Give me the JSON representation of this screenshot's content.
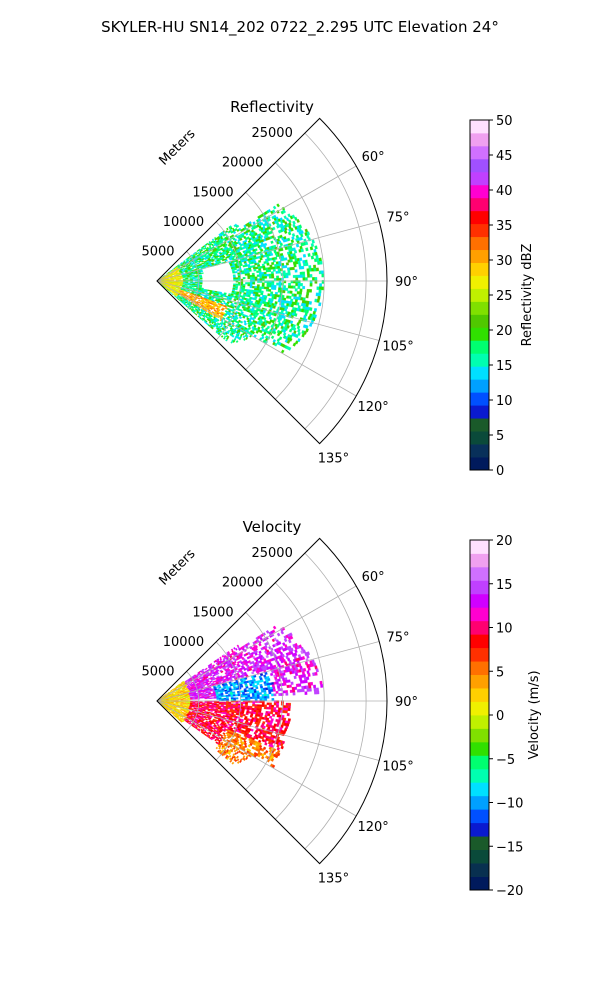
{
  "figure": {
    "title": "SKYLER-HU  SN14_202  0722_2.295 UTC Elevation 24°"
  },
  "chart_data": [
    {
      "type": "heatmap",
      "subtype": "polar-sector-ppi",
      "title": "Reflectivity",
      "radial_label": "Meters",
      "r_ticks": [
        5000,
        10000,
        15000,
        20000,
        25000
      ],
      "r_tick_labels": [
        "5000",
        "10000",
        "15000",
        "20000",
        "25000"
      ],
      "r_max": 27500,
      "theta_range_deg": [
        45,
        135
      ],
      "theta_ticks": [
        60,
        75,
        90,
        105,
        120,
        135
      ],
      "theta_tick_labels": [
        "60°",
        "75°",
        "90°",
        "105°",
        "120°",
        "135°"
      ],
      "grid": true,
      "colorbar": {
        "label": "Reflectivity dBZ",
        "min": 0,
        "max": 50,
        "ticks": [
          0,
          5,
          10,
          15,
          20,
          25,
          30,
          35,
          40,
          45,
          50
        ],
        "tick_labels": [
          "0",
          "5",
          "10",
          "15",
          "20",
          "25",
          "30",
          "35",
          "40",
          "45",
          "50"
        ],
        "stops": [
          "#001a5c",
          "#08305a",
          "#0a4a3a",
          "#1a5a2a",
          "#0a1ad0",
          "#0050ff",
          "#00a0ff",
          "#00e0ff",
          "#00ffb0",
          "#00ff70",
          "#30e000",
          "#50c800",
          "#80e000",
          "#c0f000",
          "#f0f000",
          "#ffd000",
          "#ffa000",
          "#ff7000",
          "#ff3000",
          "#ff0000",
          "#ff0070",
          "#ff00d0",
          "#c040ff",
          "#a050ff",
          "#d070ff",
          "#f0a0f0",
          "#ffe0ff"
        ]
      },
      "field": {
        "value_range": [
          5,
          40
        ],
        "typical_value": 17,
        "range_coverage_m": [
          0,
          20000
        ],
        "features": [
          {
            "desc": "high-value band",
            "theta_deg": [
              110,
              122
            ],
            "r_m": [
              3000,
              9000
            ],
            "value": 30
          },
          {
            "desc": "high-value near field",
            "theta_deg": [
              55,
              130
            ],
            "r_m": [
              0,
              3000
            ],
            "value": 27
          },
          {
            "desc": "gap",
            "theta_deg": [
              75,
              100
            ],
            "r_m": [
              5500,
              9000
            ],
            "value": null
          }
        ]
      }
    },
    {
      "type": "heatmap",
      "subtype": "polar-sector-ppi",
      "title": "Velocity",
      "radial_label": "Meters",
      "r_ticks": [
        5000,
        10000,
        15000,
        20000,
        25000
      ],
      "r_tick_labels": [
        "5000",
        "10000",
        "15000",
        "20000",
        "25000"
      ],
      "r_max": 27500,
      "theta_range_deg": [
        45,
        135
      ],
      "theta_ticks": [
        60,
        75,
        90,
        105,
        120,
        135
      ],
      "theta_tick_labels": [
        "60°",
        "75°",
        "90°",
        "105°",
        "120°",
        "135°"
      ],
      "grid": true,
      "colorbar": {
        "label": "Velocity (m/s)",
        "min": -20,
        "max": 20,
        "ticks": [
          -20,
          -15,
          -10,
          -5,
          0,
          5,
          10,
          15,
          20
        ],
        "tick_labels": [
          "−20",
          "−15",
          "−10",
          "−5",
          "0",
          "5",
          "10",
          "15",
          "20"
        ],
        "stops": [
          "#001a5c",
          "#083050",
          "#0a4a3a",
          "#1a5a2a",
          "#0a1ad0",
          "#0050ff",
          "#00a0ff",
          "#00e0ff",
          "#00ffb0",
          "#00ff70",
          "#30e000",
          "#80e000",
          "#c0f000",
          "#f0f000",
          "#ffd000",
          "#ffa000",
          "#ff7000",
          "#ff3000",
          "#ff0000",
          "#ff0070",
          "#ff00d0",
          "#d000ff",
          "#c040ff",
          "#d070ff",
          "#f0a0f0",
          "#ffe0ff"
        ]
      },
      "field": {
        "value_range": [
          -12,
          15
        ],
        "range_coverage_m": [
          0,
          20000
        ],
        "features": [
          {
            "desc": "near-field",
            "theta_deg": [
              45,
              135
            ],
            "r_m": [
              0,
              4000
            ],
            "value": 2
          },
          {
            "desc": "upper sector",
            "theta_deg": [
              55,
              88
            ],
            "r_m": [
              4000,
              20000
            ],
            "value": 13
          },
          {
            "desc": "lower sector",
            "theta_deg": [
              90,
              125
            ],
            "r_m": [
              4000,
              16000
            ],
            "value": 9
          },
          {
            "desc": "outer lower sector",
            "theta_deg": [
              112,
              130
            ],
            "r_m": [
              9000,
              16000
            ],
            "value": 5
          },
          {
            "desc": "low-value streak",
            "theta_deg": [
              75,
              90
            ],
            "r_m": [
              7000,
              14000
            ],
            "value": -10
          }
        ]
      }
    }
  ]
}
